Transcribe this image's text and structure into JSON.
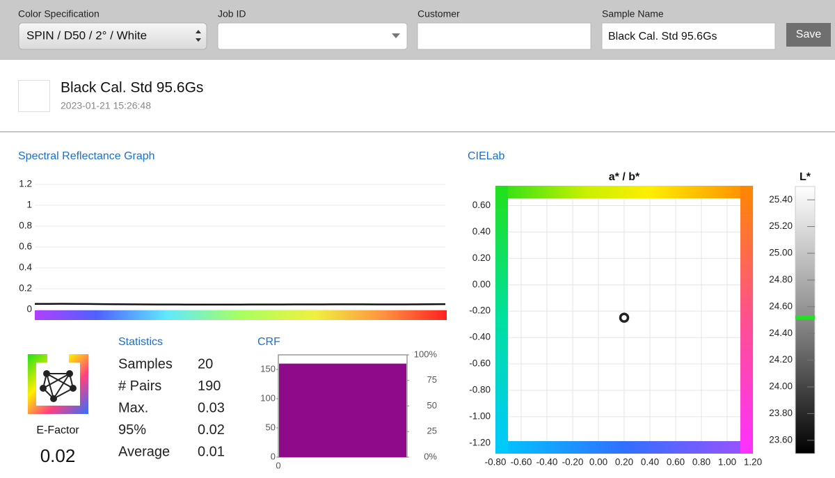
{
  "toolbar": {
    "color_specification": {
      "label": "Color Specification",
      "value": "SPIN / D50 / 2° / White"
    },
    "job_id": {
      "label": "Job ID"
    },
    "customer": {
      "label": "Customer"
    },
    "sample_name": {
      "label": "Sample Name",
      "value": "Black Cal. Std 95.6Gs"
    },
    "save_button": "Save"
  },
  "sample": {
    "name": "Black Cal. Std 95.6Gs",
    "timestamp": "2023-01-21 15:26:48"
  },
  "e_factor": {
    "label": "E-Factor",
    "value": 0.02
  },
  "statistics": {
    "title": "Statistics",
    "rows": [
      [
        "Samples",
        20
      ],
      [
        "# Pairs",
        190
      ],
      [
        "Max.",
        0.03
      ],
      [
        "95%",
        0.02
      ],
      [
        "Average",
        0.01
      ]
    ]
  },
  "chart_data": [
    {
      "type": "line",
      "title": "Spectral Reflectance Graph",
      "color": "#111111",
      "values": [
        0.055,
        0.055,
        0.056,
        0.055,
        0.054,
        0.053,
        0.052,
        0.051,
        0.05,
        0.049,
        0.049,
        0.048,
        0.048,
        0.048,
        0.048,
        0.048,
        0.049,
        0.049,
        0.049,
        0.05,
        0.05,
        0.05,
        0.051,
        0.051,
        0.051,
        0.05,
        0.05,
        0.05,
        0.051,
        0.052,
        0.053
      ],
      "ylim": [
        0,
        1.2
      ],
      "yticks": [
        0,
        0.2,
        0.4,
        0.6,
        0.8,
        1,
        1.2
      ],
      "grid": true
    },
    {
      "type": "scatter",
      "title": "CIELab",
      "subtitle": "a* / b*",
      "color": "#222222",
      "x": [
        0.2
      ],
      "values": [
        -0.25
      ],
      "xlim": [
        -0.8,
        1.2
      ],
      "xticks": [
        {
          "value": -0.8,
          "label": "-0.80"
        },
        {
          "value": -0.6,
          "label": "-0.60"
        },
        {
          "value": -0.4,
          "label": "-0.40"
        },
        {
          "value": -0.2,
          "label": "-0.20"
        },
        {
          "value": 0,
          "label": "0.00"
        },
        {
          "value": 0.2,
          "label": "0.20"
        },
        {
          "value": 0.4,
          "label": "0.40"
        },
        {
          "value": 0.6,
          "label": "0.60"
        },
        {
          "value": 0.8,
          "label": "0.80"
        },
        {
          "value": 1,
          "label": "1.00"
        },
        {
          "value": 1.2,
          "label": "1.20"
        }
      ],
      "ylim": [
        -1.28,
        0.75
      ],
      "yticks": [
        {
          "value": 0.6,
          "label": "0.60"
        },
        {
          "value": 0.4,
          "label": "0.40"
        },
        {
          "value": 0.2,
          "label": "0.20"
        },
        {
          "value": 0,
          "label": "0.00"
        },
        {
          "value": -0.2,
          "label": "-0.20"
        },
        {
          "value": -0.4,
          "label": "-0.40"
        },
        {
          "value": -0.6,
          "label": "-0.60"
        },
        {
          "value": -0.8,
          "label": "-0.80"
        },
        {
          "value": -1,
          "label": "-1.00"
        },
        {
          "value": -1.2,
          "label": "-1.20"
        }
      ],
      "grid": true
    },
    {
      "type": "gauge",
      "title": "L*",
      "color": "#22e022",
      "values": [
        24.52
      ],
      "ylim": [
        23.5,
        25.5
      ],
      "yticks": [
        {
          "value": 25.4,
          "label": "25.40"
        },
        {
          "value": 25.2,
          "label": "25.20"
        },
        {
          "value": 25,
          "label": "25.00"
        },
        {
          "value": 24.8,
          "label": "24.80"
        },
        {
          "value": 24.6,
          "label": "24.60"
        },
        {
          "value": 24.4,
          "label": "24.40"
        },
        {
          "value": 24.2,
          "label": "24.20"
        },
        {
          "value": 24,
          "label": "24.00"
        },
        {
          "value": 23.8,
          "label": "23.80"
        },
        {
          "value": 23.6,
          "label": "23.60"
        }
      ]
    },
    {
      "type": "bar",
      "title": "CRF",
      "color": "#8e0a8a",
      "values": [
        160
      ],
      "ylim": [
        0,
        175
      ],
      "yticks": [
        0,
        50,
        100,
        150
      ],
      "y2lim": [
        0,
        100
      ],
      "y2ticks": [
        {
          "value": 0,
          "label": "0%"
        },
        25,
        50,
        75,
        {
          "value": 100,
          "label": "100%"
        }
      ],
      "xlim": [
        0,
        1
      ],
      "xticks": [
        0
      ]
    }
  ]
}
